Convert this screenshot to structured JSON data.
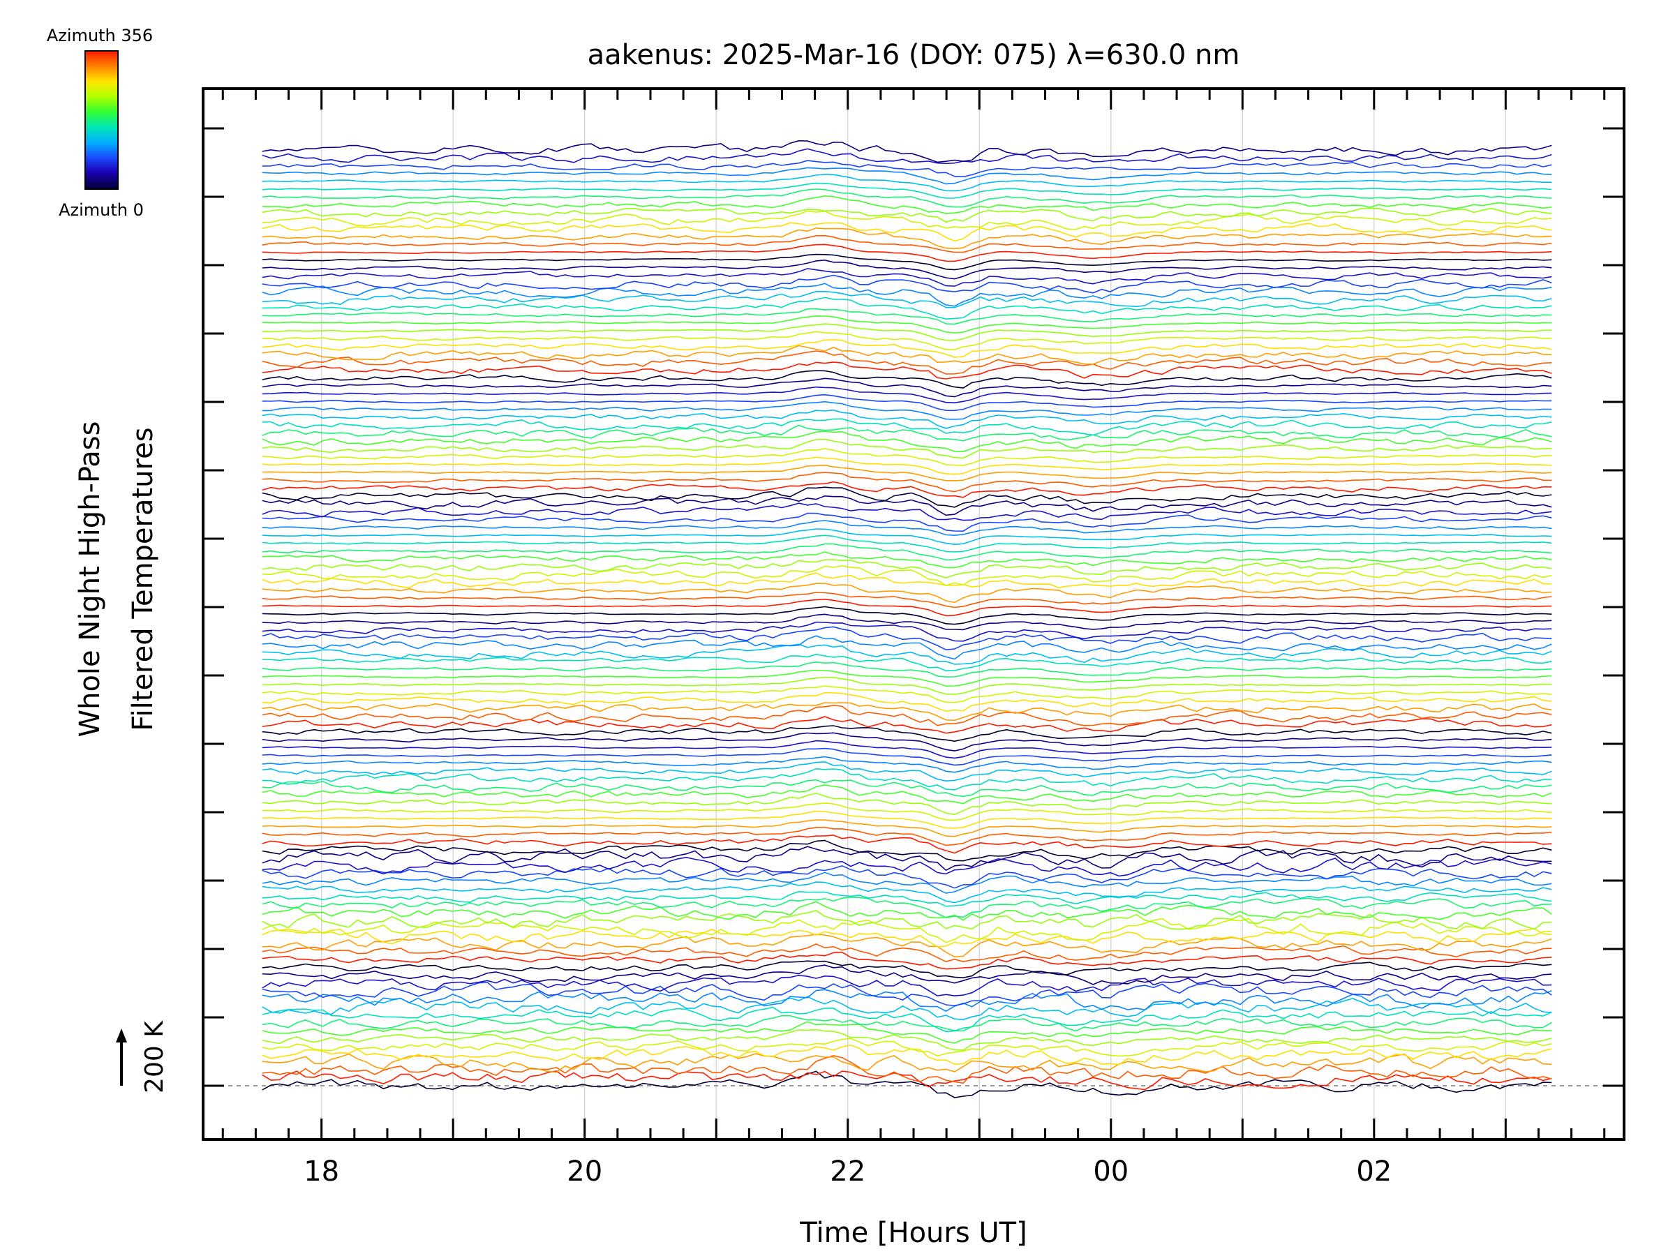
{
  "chart_data": {
    "type": "line",
    "title": "aakenus: 2025-Mar-16 (DOY: 075) λ=630.0 nm",
    "xlabel": "Time [Hours UT]",
    "ylabel_line1": "Whole Night High-Pass",
    "ylabel_line2": "Filtered Temperatures",
    "scale_label": "200 K",
    "x_ticks": [
      "18",
      "20",
      "22",
      "00",
      "02"
    ],
    "x_tick_hours": [
      18,
      20,
      22,
      24,
      26
    ],
    "xlim": [
      17.1,
      27.9
    ],
    "x_data_range": [
      17.55,
      27.35
    ],
    "grid": "vertical, hourly",
    "colorbar": {
      "top_label": "Azimuth 356",
      "bottom_label": "Azimuth 0",
      "colormap": "rainbow",
      "colors": [
        "#ff1a00",
        "#ff8000",
        "#ffe600",
        "#b3ff00",
        "#33ff33",
        "#00e6b3",
        "#00b3ff",
        "#1a4dff",
        "#1a00b3",
        "#000033"
      ]
    },
    "series_layout": {
      "count": 120,
      "groups": 8,
      "per_group": 15,
      "offset_per_series_K": 11.5,
      "azimuth_range": [
        0,
        356
      ]
    }
  }
}
